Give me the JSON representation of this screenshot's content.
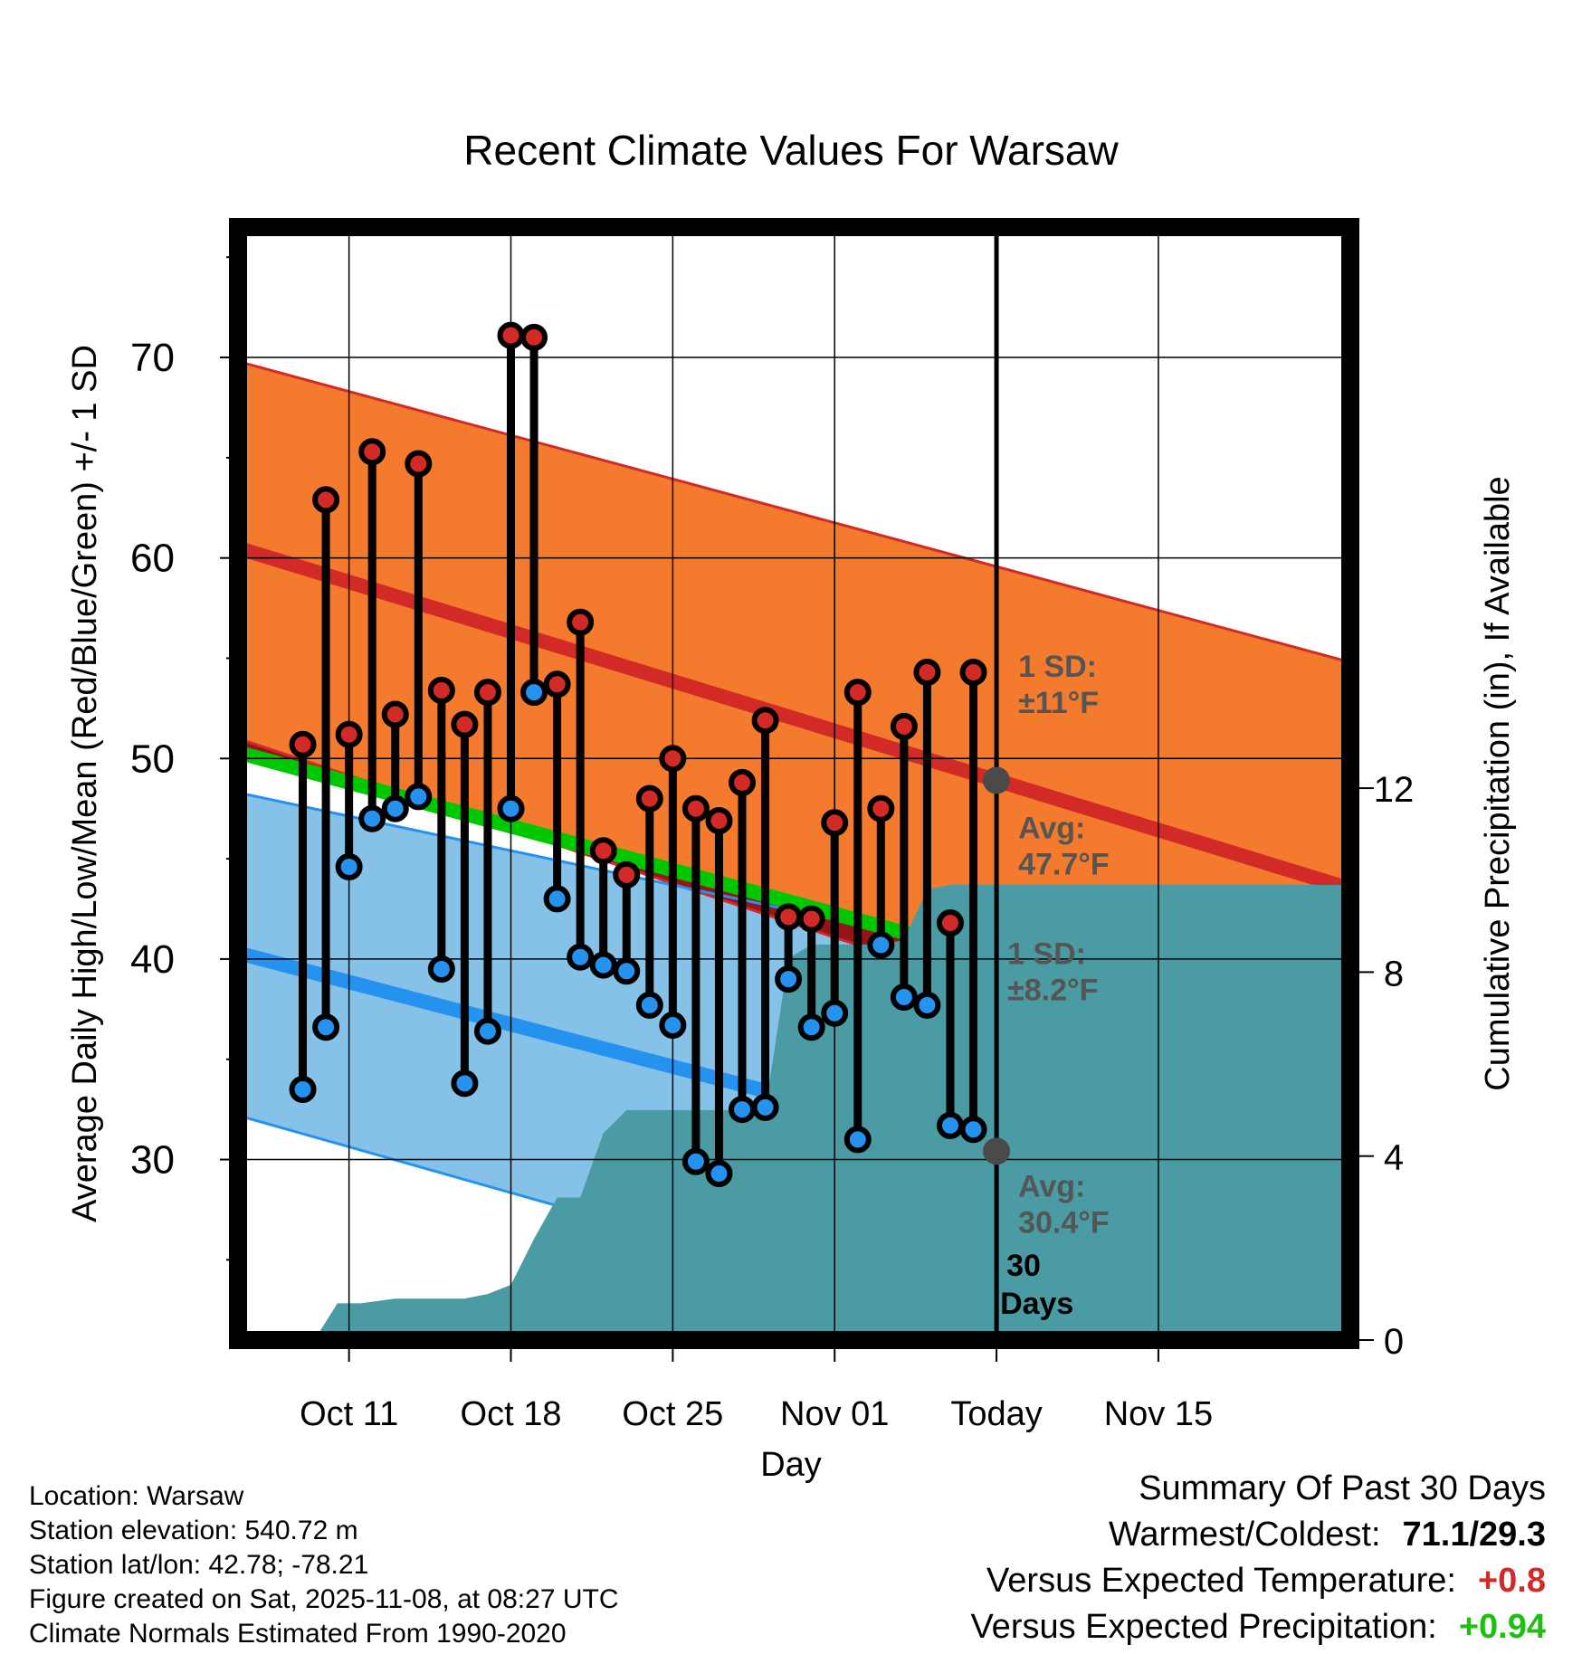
{
  "chart_data": {
    "type": "line",
    "title": "Recent Climate Values For Warsaw",
    "xlabel": "Day",
    "ylabel": "Average Daily High/Low/Mean (Red/Blue/Green) +/- 1 SD",
    "y2label": "Cumulative Precipitation (in), If Available",
    "ylim": [
      21,
      76.5
    ],
    "y2lim": [
      0,
      24.2
    ],
    "xlim": [
      -2.8,
      45.3
    ],
    "x_tick_days": [
      2,
      9,
      16,
      23,
      30,
      37
    ],
    "x_tick_labels": [
      "Oct 11",
      "Oct 18",
      "Oct 25",
      "Nov 01",
      "Today",
      "Nov 15"
    ],
    "y_ticks": [
      30,
      40,
      50,
      60,
      70
    ],
    "y2_ticks": [
      0,
      4,
      8,
      12
    ],
    "today_day": 30,
    "normals": {
      "high_avg": [
        60.5,
        43.5
      ],
      "high_sd_upper": [
        69.8,
        54.8
      ],
      "high_sd_lower": [
        51.0,
        32.5
      ],
      "low_avg": [
        40.3,
        25.8
      ],
      "low_sd_upper": [
        48.3,
        36.5
      ],
      "low_sd_lower": [
        32.2,
        16.5
      ],
      "mean_avg": [
        50.3,
        35.3
      ]
    },
    "days": [
      0,
      1,
      2,
      3,
      4,
      5,
      6,
      7,
      8,
      9,
      10,
      11,
      12,
      13,
      14,
      15,
      16,
      17,
      18,
      19,
      20,
      21,
      22,
      23,
      24,
      25,
      26,
      27,
      28,
      29
    ],
    "highs": [
      50.7,
      62.9,
      51.2,
      65.3,
      52.2,
      64.7,
      53.4,
      51.7,
      53.3,
      71.1,
      71.0,
      53.7,
      56.8,
      45.4,
      44.2,
      48.0,
      50.0,
      47.5,
      46.9,
      48.8,
      51.9,
      42.1,
      42.0,
      46.8,
      53.3,
      47.5,
      51.6,
      54.3,
      41.8,
      54.3
    ],
    "lows": [
      33.5,
      36.6,
      44.6,
      47.0,
      47.5,
      48.1,
      39.5,
      33.8,
      36.4,
      47.5,
      53.3,
      43.0,
      40.1,
      39.7,
      39.4,
      37.7,
      36.7,
      29.9,
      29.3,
      32.5,
      32.6,
      39.0,
      36.6,
      37.3,
      31.0,
      40.7,
      38.1,
      37.7,
      31.7,
      31.5
    ],
    "precip_x": [
      -2.8,
      0.5,
      1.5,
      2.5,
      4.0,
      5.0,
      6.0,
      7.0,
      8.0,
      9.0,
      10.0,
      11.0,
      12.0,
      13.0,
      14.0,
      14.5,
      16.0,
      17.0,
      18.0,
      19.0,
      20.0,
      21.0,
      22.0,
      23.0,
      24.0,
      25.0,
      26.0,
      27.0,
      28.0,
      29.0,
      30.0,
      45.3
    ],
    "precip_cum": [
      0,
      0,
      0.8,
      0.8,
      0.9,
      0.9,
      0.9,
      0.9,
      1.0,
      1.2,
      2.2,
      3.1,
      3.1,
      4.5,
      5.0,
      5.0,
      5.0,
      5.0,
      5.0,
      5.0,
      5.0,
      8.3,
      8.6,
      8.6,
      8.6,
      8.6,
      8.7,
      9.8,
      9.9,
      9.9,
      9.9,
      9.9
    ],
    "annotations": {
      "high_sd": "1 SD:",
      "high_sd_value": "±11°F",
      "high_avg_label": "Avg:",
      "high_avg_value": "47.7°F",
      "low_sd": "1 SD:",
      "low_sd_value": "±8.2°F",
      "low_avg_label": "Avg:",
      "low_avg_value": "30.4°F",
      "days_count": "30",
      "days_word": "Days"
    },
    "colors": {
      "high_band": "#f47a2e",
      "high_line": "#d12a27",
      "low_band": "#86c2e7",
      "low_line": "#2592f0",
      "mean_line": "#00c800",
      "below_normal": "#96151a",
      "precip": "#4a9ba3",
      "high_marker": "#d12a27",
      "low_marker": "#2592f0",
      "annotation": "#555555"
    }
  },
  "info": {
    "location": "Location: Warsaw",
    "elevation": "Station elevation: 540.72 m",
    "latlon": "Station lat/lon: 42.78; -78.21",
    "created": "Figure created on Sat, 2025-11-08, at 08:27 UTC",
    "normals": "Climate Normals Estimated From 1990-2020"
  },
  "summary": {
    "heading": "Summary Of Past 30 Days",
    "warm_cold_label": "Warmest/Coldest:",
    "warm_cold_value": "71.1/29.3",
    "temp_label": "Versus Expected Temperature:",
    "temp_value": "+0.8",
    "precip_label": "Versus Expected Precipitation:",
    "precip_value": "+0.94",
    "temp_color": "#d12a27",
    "precip_color": "#1fbf12"
  }
}
